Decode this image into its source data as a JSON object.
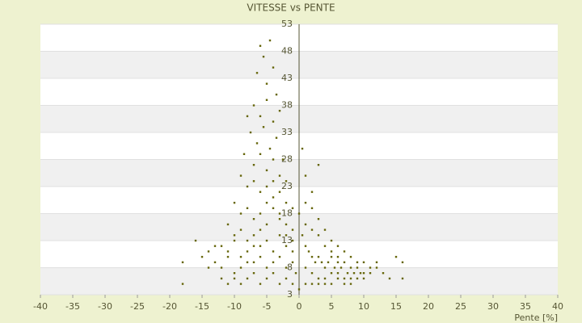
{
  "chart_data": {
    "type": "scatter",
    "title": "VITESSE vs PENTE",
    "xlabel": "Pente [%]",
    "color": "#66660a",
    "xlim": [
      -40,
      40
    ],
    "xticks": [
      -40,
      -35,
      -30,
      -25,
      -20,
      -15,
      -10,
      -5,
      0,
      5,
      10,
      15,
      20,
      25,
      30,
      35,
      40
    ],
    "ylim": [
      3,
      53
    ],
    "yticks": [
      3,
      8,
      13,
      18,
      23,
      28,
      33,
      38,
      43,
      48,
      53
    ],
    "x": [
      -6,
      -5.5,
      -4.5,
      -4,
      -6.5,
      -5,
      -3.5,
      -7,
      -6,
      -5,
      -4,
      -3,
      -8,
      -7.5,
      -6.5,
      -5.5,
      -4.5,
      -3.5,
      -2.5,
      -8.5,
      -7,
      -6,
      -5,
      -4,
      -3,
      -2,
      -9,
      -8,
      -7,
      -6,
      -5,
      -4,
      -3,
      -2,
      -1,
      -10,
      -9,
      -8,
      -7,
      -6,
      -5,
      -4,
      -3,
      -2,
      -1,
      -11,
      -10,
      -9,
      -8,
      -7,
      -6,
      -5,
      -4,
      -3,
      -2,
      -1,
      -12,
      -11,
      -10,
      -9,
      -8,
      -7,
      -6,
      -5,
      -4,
      -3,
      -2,
      -1,
      -14,
      -13,
      -12,
      -11,
      -10,
      -9,
      -8,
      -7,
      -6,
      -5,
      -4,
      -3,
      -2,
      -1,
      -15,
      -16,
      -18,
      -13,
      -14,
      -12,
      -11,
      -10,
      -9,
      -8,
      -7,
      -6,
      -5,
      -4,
      -3,
      -2,
      -1,
      -18,
      0.5,
      1,
      1.5,
      2,
      2.5,
      3,
      3.5,
      4,
      4.5,
      5,
      5.5,
      6,
      6.5,
      7,
      7.5,
      8,
      8.5,
      9,
      9.5,
      10,
      11,
      12,
      13,
      14,
      15,
      16,
      16,
      1,
      2,
      3,
      4,
      5,
      6,
      7,
      8,
      9,
      10,
      11,
      12,
      1,
      2,
      3,
      4,
      5,
      6,
      7,
      8,
      1,
      2,
      3,
      4,
      5,
      6,
      1,
      2,
      3,
      4,
      5,
      6,
      7,
      8,
      9,
      10,
      1,
      2,
      3,
      0.5,
      0,
      -0.5,
      0
    ],
    "y": [
      49,
      47,
      50,
      45,
      44,
      42,
      40,
      38,
      36,
      39,
      35,
      37,
      36,
      33,
      31,
      34,
      30,
      32,
      28,
      29,
      27,
      29,
      26,
      28,
      25,
      24,
      25,
      23,
      24,
      22,
      23,
      21,
      22,
      20,
      19,
      20,
      18,
      19,
      17,
      18,
      16,
      19,
      17,
      16,
      15,
      16,
      14,
      15,
      13,
      14,
      12,
      13,
      11,
      14,
      12,
      13,
      12,
      11,
      13,
      10,
      11,
      9,
      10,
      8,
      9,
      10,
      8,
      9,
      11,
      9,
      8,
      10,
      7,
      8,
      6,
      7,
      5,
      6,
      7,
      5,
      6,
      5,
      10,
      13,
      9,
      12,
      8,
      6,
      5,
      6,
      5,
      9,
      12,
      15,
      20,
      24,
      18,
      14,
      11,
      5,
      14,
      12,
      11,
      10,
      9,
      10,
      9,
      8,
      9,
      10,
      8,
      9,
      8,
      9,
      7,
      8,
      7,
      8,
      7,
      6,
      7,
      8,
      7,
      6,
      10,
      9,
      6,
      16,
      15,
      14,
      12,
      11,
      10,
      11,
      10,
      9,
      9,
      8,
      9,
      8,
      7,
      6,
      5,
      5,
      6,
      5,
      5,
      20,
      19,
      17,
      15,
      13,
      12,
      5,
      5,
      5,
      6,
      7,
      7,
      6,
      6,
      6,
      7,
      25,
      22,
      27,
      30,
      18,
      7,
      4
    ]
  }
}
